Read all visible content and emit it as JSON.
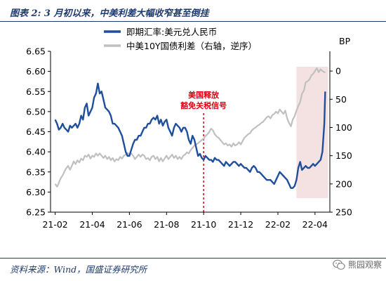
{
  "figure": {
    "title": "图表 2:  3 月初以来，中美利差大幅收窄甚至倒挂",
    "source": "资料来源：Wind，国盛证券研究所",
    "watermark": "熊园观察",
    "watermark_icon": "wechat-icon"
  },
  "chart_data": {
    "type": "line",
    "left_axis": {
      "label": "",
      "ylim": [
        6.25,
        6.65
      ],
      "ticks": [
        "6.25",
        "6.30",
        "6.35",
        "6.40",
        "6.45",
        "6.50",
        "6.55",
        "6.60",
        "6.65"
      ],
      "tick_values": [
        6.25,
        6.3,
        6.35,
        6.4,
        6.45,
        6.5,
        6.55,
        6.6,
        6.65
      ]
    },
    "right_axis": {
      "label": "BP",
      "inverted": true,
      "ylim": [
        -35,
        250
      ],
      "ticks": [
        "0",
        "50",
        "100",
        "150",
        "200",
        "250"
      ],
      "tick_values": [
        0,
        50,
        100,
        150,
        200,
        250
      ]
    },
    "x_axis": {
      "ticks": [
        "21-02",
        "21-04",
        "21-06",
        "21-08",
        "21-10",
        "21-12",
        "22-02",
        "22-04"
      ],
      "tick_values": [
        1,
        3,
        5,
        7,
        9,
        11,
        13,
        15
      ]
    },
    "grid": false,
    "legend_placement": "top-left",
    "series": [
      {
        "name": "即期汇率:美元兑人民币",
        "axis": "left",
        "color": "#1f4e9c",
        "points": [
          [
            1.0,
            6.48
          ],
          [
            1.1,
            6.47
          ],
          [
            1.2,
            6.455
          ],
          [
            1.3,
            6.46
          ],
          [
            1.4,
            6.47
          ],
          [
            1.5,
            6.46
          ],
          [
            1.6,
            6.455
          ],
          [
            1.7,
            6.45
          ],
          [
            1.8,
            6.465
          ],
          [
            1.9,
            6.46
          ],
          [
            2.0,
            6.465
          ],
          [
            2.1,
            6.47
          ],
          [
            2.2,
            6.46
          ],
          [
            2.3,
            6.47
          ],
          [
            2.4,
            6.49
          ],
          [
            2.5,
            6.48
          ],
          [
            2.6,
            6.51
          ],
          [
            2.7,
            6.52
          ],
          [
            2.8,
            6.49
          ],
          [
            2.9,
            6.5
          ],
          [
            3.0,
            6.51
          ],
          [
            3.1,
            6.535
          ],
          [
            3.2,
            6.545
          ],
          [
            3.3,
            6.57
          ],
          [
            3.4,
            6.545
          ],
          [
            3.5,
            6.55
          ],
          [
            3.6,
            6.53
          ],
          [
            3.7,
            6.51
          ],
          [
            3.8,
            6.505
          ],
          [
            3.9,
            6.5
          ],
          [
            4.0,
            6.49
          ],
          [
            4.1,
            6.47
          ],
          [
            4.2,
            6.47
          ],
          [
            4.3,
            6.465
          ],
          [
            4.4,
            6.46
          ],
          [
            4.5,
            6.45
          ],
          [
            4.6,
            6.44
          ],
          [
            4.7,
            6.42
          ],
          [
            4.8,
            6.4
          ],
          [
            4.9,
            6.39
          ],
          [
            5.0,
            6.39
          ],
          [
            5.1,
            6.405
          ],
          [
            5.2,
            6.42
          ],
          [
            5.3,
            6.43
          ],
          [
            5.4,
            6.43
          ],
          [
            5.5,
            6.44
          ],
          [
            5.6,
            6.44
          ],
          [
            5.7,
            6.45
          ],
          [
            5.8,
            6.46
          ],
          [
            5.9,
            6.46
          ],
          [
            6.0,
            6.47
          ],
          [
            6.1,
            6.47
          ],
          [
            6.2,
            6.48
          ],
          [
            6.3,
            6.485
          ],
          [
            6.4,
            6.48
          ],
          [
            6.5,
            6.49
          ],
          [
            6.6,
            6.47
          ],
          [
            6.7,
            6.48
          ],
          [
            6.8,
            6.465
          ],
          [
            6.9,
            6.475
          ],
          [
            7.0,
            6.48
          ],
          [
            7.1,
            6.46
          ],
          [
            7.2,
            6.45
          ],
          [
            7.3,
            6.44
          ],
          [
            7.4,
            6.46
          ],
          [
            7.5,
            6.47
          ],
          [
            7.6,
            6.465
          ],
          [
            7.7,
            6.46
          ],
          [
            7.8,
            6.45
          ],
          [
            7.9,
            6.46
          ],
          [
            8.0,
            6.46
          ],
          [
            8.1,
            6.45
          ],
          [
            8.2,
            6.43
          ],
          [
            8.3,
            6.42
          ],
          [
            8.4,
            6.44
          ],
          [
            8.5,
            6.43
          ],
          [
            8.6,
            6.41
          ],
          [
            8.7,
            6.39
          ],
          [
            8.8,
            6.395
          ],
          [
            8.9,
            6.385
          ],
          [
            9.0,
            6.38
          ],
          [
            9.1,
            6.39
          ],
          [
            9.2,
            6.385
          ],
          [
            9.3,
            6.38
          ],
          [
            9.4,
            6.38
          ],
          [
            9.5,
            6.375
          ],
          [
            9.6,
            6.385
          ],
          [
            9.7,
            6.38
          ],
          [
            9.8,
            6.38
          ],
          [
            9.9,
            6.375
          ],
          [
            10.0,
            6.37
          ],
          [
            10.1,
            6.365
          ],
          [
            10.2,
            6.375
          ],
          [
            10.3,
            6.37
          ],
          [
            10.4,
            6.365
          ],
          [
            10.5,
            6.37
          ],
          [
            10.6,
            6.375
          ],
          [
            10.7,
            6.375
          ],
          [
            10.8,
            6.37
          ],
          [
            10.9,
            6.365
          ],
          [
            11.0,
            6.37
          ],
          [
            11.1,
            6.365
          ],
          [
            11.2,
            6.36
          ],
          [
            11.3,
            6.36
          ],
          [
            11.4,
            6.355
          ],
          [
            11.5,
            6.35
          ],
          [
            11.6,
            6.36
          ],
          [
            11.7,
            6.365
          ],
          [
            11.8,
            6.36
          ],
          [
            11.9,
            6.35
          ],
          [
            12.0,
            6.35
          ],
          [
            12.1,
            6.345
          ],
          [
            12.2,
            6.34
          ],
          [
            12.3,
            6.335
          ],
          [
            12.4,
            6.33
          ],
          [
            12.5,
            6.33
          ],
          [
            12.6,
            6.33
          ],
          [
            12.7,
            6.325
          ],
          [
            12.8,
            6.32
          ],
          [
            12.9,
            6.33
          ],
          [
            13.0,
            6.34
          ],
          [
            13.1,
            6.35
          ],
          [
            13.2,
            6.345
          ],
          [
            13.3,
            6.34
          ],
          [
            13.4,
            6.335
          ],
          [
            13.5,
            6.33
          ],
          [
            13.6,
            6.32
          ],
          [
            13.7,
            6.31
          ],
          [
            13.8,
            6.31
          ],
          [
            13.9,
            6.315
          ],
          [
            14.0,
            6.33
          ],
          [
            14.1,
            6.36
          ],
          [
            14.2,
            6.375
          ],
          [
            14.3,
            6.355
          ],
          [
            14.4,
            6.36
          ],
          [
            14.5,
            6.365
          ],
          [
            14.6,
            6.36
          ],
          [
            14.7,
            6.36
          ],
          [
            14.8,
            6.365
          ],
          [
            14.9,
            6.37
          ],
          [
            15.0,
            6.365
          ],
          [
            15.1,
            6.37
          ],
          [
            15.2,
            6.375
          ],
          [
            15.3,
            6.38
          ],
          [
            15.4,
            6.4
          ],
          [
            15.5,
            6.47
          ],
          [
            15.55,
            6.55
          ]
        ]
      },
      {
        "name": "中美10Y国债利差（右轴，逆序）",
        "axis": "right",
        "color": "#c0c0c0",
        "points": [
          [
            1.0,
            200
          ],
          [
            1.1,
            205
          ],
          [
            1.2,
            198
          ],
          [
            1.3,
            190
          ],
          [
            1.4,
            185
          ],
          [
            1.5,
            178
          ],
          [
            1.6,
            172
          ],
          [
            1.7,
            168
          ],
          [
            1.8,
            175
          ],
          [
            1.9,
            168
          ],
          [
            2.0,
            160
          ],
          [
            2.1,
            165
          ],
          [
            2.2,
            158
          ],
          [
            2.3,
            162
          ],
          [
            2.4,
            155
          ],
          [
            2.5,
            158
          ],
          [
            2.6,
            150
          ],
          [
            2.7,
            152
          ],
          [
            2.8,
            148
          ],
          [
            2.9,
            155
          ],
          [
            3.0,
            150
          ],
          [
            3.1,
            152
          ],
          [
            3.2,
            146
          ],
          [
            3.3,
            150
          ],
          [
            3.4,
            146
          ],
          [
            3.5,
            150
          ],
          [
            3.6,
            154
          ],
          [
            3.7,
            150
          ],
          [
            3.8,
            156
          ],
          [
            3.9,
            152
          ],
          [
            4.0,
            158
          ],
          [
            4.1,
            154
          ],
          [
            4.2,
            160
          ],
          [
            4.3,
            156
          ],
          [
            4.4,
            158
          ],
          [
            4.5,
            152
          ],
          [
            4.6,
            155
          ],
          [
            4.7,
            150
          ],
          [
            4.8,
            148
          ],
          [
            4.9,
            145
          ],
          [
            5.0,
            148
          ],
          [
            5.1,
            146
          ],
          [
            5.2,
            150
          ],
          [
            5.3,
            156
          ],
          [
            5.4,
            152
          ],
          [
            5.5,
            148
          ],
          [
            5.6,
            152
          ],
          [
            5.7,
            148
          ],
          [
            5.8,
            150
          ],
          [
            5.9,
            156
          ],
          [
            6.0,
            154
          ],
          [
            6.1,
            158
          ],
          [
            6.2,
            152
          ],
          [
            6.3,
            150
          ],
          [
            6.4,
            156
          ],
          [
            6.5,
            152
          ],
          [
            6.6,
            160
          ],
          [
            6.7,
            154
          ],
          [
            6.8,
            160
          ],
          [
            6.9,
            155
          ],
          [
            7.0,
            150
          ],
          [
            7.1,
            156
          ],
          [
            7.2,
            152
          ],
          [
            7.3,
            148
          ],
          [
            7.4,
            154
          ],
          [
            7.5,
            150
          ],
          [
            7.6,
            156
          ],
          [
            7.7,
            152
          ],
          [
            7.8,
            156
          ],
          [
            7.9,
            150
          ],
          [
            8.0,
            148
          ],
          [
            8.1,
            144
          ],
          [
            8.2,
            146
          ],
          [
            8.3,
            140
          ],
          [
            8.4,
            136
          ],
          [
            8.5,
            132
          ],
          [
            8.6,
            130
          ],
          [
            8.7,
            128
          ],
          [
            8.8,
            125
          ],
          [
            8.9,
            122
          ],
          [
            9.0,
            120
          ],
          [
            9.1,
            115
          ],
          [
            9.2,
            112
          ],
          [
            9.3,
            108
          ],
          [
            9.4,
            102
          ],
          [
            9.5,
            105
          ],
          [
            9.6,
            112
          ],
          [
            9.7,
            116
          ],
          [
            9.8,
            118
          ],
          [
            9.9,
            122
          ],
          [
            10.0,
            126
          ],
          [
            10.1,
            130
          ],
          [
            10.2,
            128
          ],
          [
            10.3,
            132
          ],
          [
            10.4,
            130
          ],
          [
            10.5,
            134
          ],
          [
            10.6,
            128
          ],
          [
            10.7,
            132
          ],
          [
            10.8,
            130
          ],
          [
            10.9,
            126
          ],
          [
            11.0,
            130
          ],
          [
            11.1,
            124
          ],
          [
            11.2,
            118
          ],
          [
            11.3,
            115
          ],
          [
            11.4,
            112
          ],
          [
            11.5,
            110
          ],
          [
            11.6,
            105
          ],
          [
            11.7,
            102
          ],
          [
            11.8,
            100
          ],
          [
            11.9,
            97
          ],
          [
            12.0,
            95
          ],
          [
            12.1,
            92
          ],
          [
            12.2,
            90
          ],
          [
            12.3,
            86
          ],
          [
            12.4,
            82
          ],
          [
            12.5,
            80
          ],
          [
            12.6,
            84
          ],
          [
            12.7,
            78
          ],
          [
            12.8,
            76
          ],
          [
            12.9,
            72
          ],
          [
            13.0,
            75
          ],
          [
            13.1,
            68
          ],
          [
            13.2,
            72
          ],
          [
            13.3,
            76
          ],
          [
            13.4,
            70
          ],
          [
            13.5,
            84
          ],
          [
            13.6,
            92
          ],
          [
            13.7,
            98
          ],
          [
            13.8,
            86
          ],
          [
            13.9,
            80
          ],
          [
            14.0,
            70
          ],
          [
            14.1,
            62
          ],
          [
            14.2,
            55
          ],
          [
            14.3,
            40
          ],
          [
            14.4,
            35
          ],
          [
            14.5,
            20
          ],
          [
            14.6,
            18
          ],
          [
            14.7,
            15
          ],
          [
            14.8,
            8
          ],
          [
            14.9,
            5
          ],
          [
            15.0,
            0
          ],
          [
            15.1,
            -5
          ],
          [
            15.2,
            2
          ],
          [
            15.3,
            -3
          ],
          [
            15.4,
            0
          ],
          [
            15.5,
            2
          ],
          [
            15.55,
            3
          ]
        ]
      }
    ],
    "annotation": {
      "text_line1": "美国释放",
      "text_line2": "豁免关税信号",
      "x": 9.0,
      "color": "#e0000f"
    },
    "shaded_region": {
      "x_start": 14.0,
      "x_end": 15.55,
      "color": "#f4e1e1"
    }
  }
}
